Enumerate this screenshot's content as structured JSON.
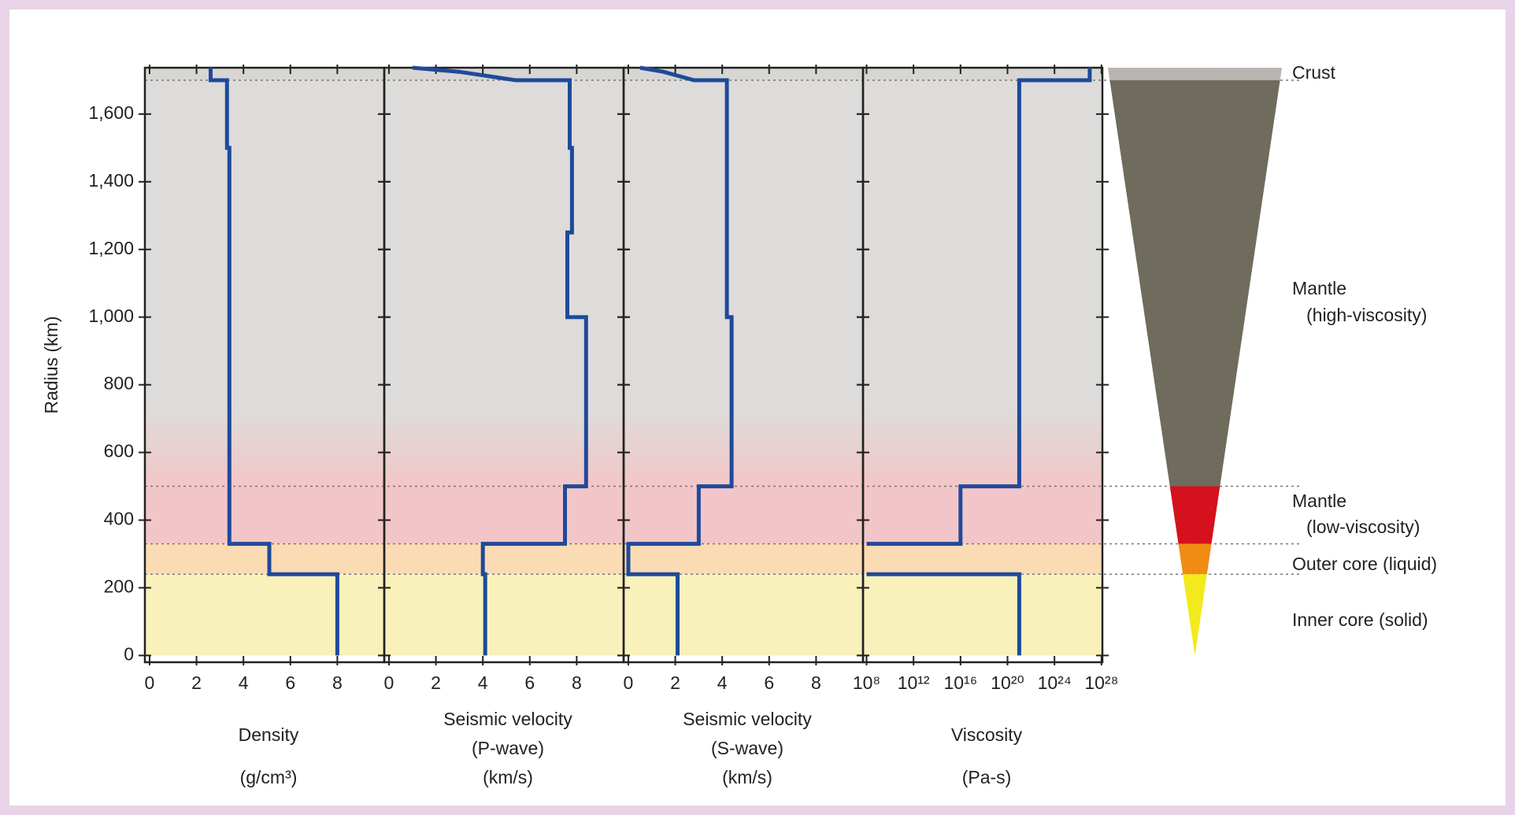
{
  "chart_data": [
    {
      "type": "line",
      "x_label": [
        "Density",
        "(g/cm³)"
      ],
      "y_label": "Radius (km)",
      "xlim": [
        -0.2,
        10
      ],
      "xticks": [
        0,
        2,
        4,
        6,
        8
      ],
      "ylim": [
        -20,
        1737
      ],
      "yticks": [
        0,
        200,
        400,
        600,
        800,
        {
          "value": 1000,
          "label": "1,000"
        },
        {
          "value": 1200,
          "label": "1,200"
        },
        {
          "value": 1400,
          "label": "1,400"
        },
        {
          "value": 1600,
          "label": "1,600"
        }
      ],
      "color": "#1f4a9a",
      "radius": [
        1737,
        1700,
        1700,
        1500,
        1500,
        330,
        330,
        240,
        240,
        0
      ],
      "values": [
        2.6,
        2.6,
        3.3,
        3.3,
        3.4,
        3.4,
        5.1,
        5.1,
        8.0,
        8.0
      ]
    },
    {
      "type": "line",
      "x_label": [
        "Seismic velocity",
        "(P-wave)",
        "(km/s)"
      ],
      "xlim": [
        -0.2,
        10
      ],
      "xticks": [
        0,
        2,
        4,
        6,
        8
      ],
      "ylim": [
        -20,
        1737
      ],
      "color": "#1f4a9a",
      "radius": [
        1737,
        1725,
        1700,
        1700,
        1500,
        1500,
        1250,
        1250,
        1000,
        1000,
        500,
        500,
        330,
        330,
        240,
        240,
        0
      ],
      "values": [
        1.0,
        3.0,
        5.4,
        7.7,
        7.7,
        7.8,
        7.8,
        7.6,
        7.6,
        8.4,
        8.4,
        7.5,
        7.5,
        4.0,
        4.0,
        4.1,
        4.1
      ]
    },
    {
      "type": "line",
      "x_label": [
        "Seismic velocity",
        "(S-wave)",
        "(km/s)"
      ],
      "xlim": [
        -0.2,
        10
      ],
      "xticks": [
        0,
        2,
        4,
        6,
        8
      ],
      "ylim": [
        -20,
        1737
      ],
      "color": "#1f4a9a",
      "radius": [
        1737,
        1725,
        1700,
        1700,
        1000,
        1000,
        500,
        500,
        330,
        330,
        240,
        240,
        0
      ],
      "values": [
        0.5,
        1.5,
        2.8,
        4.2,
        4.2,
        4.4,
        4.4,
        3.0,
        3.0,
        0,
        0,
        2.1,
        2.1
      ]
    },
    {
      "type": "line",
      "x_label": [
        "Viscosity",
        "(Pa-s)"
      ],
      "log_x": true,
      "xlim": [
        50000000,
        1.2e+28
      ],
      "xticks": [
        {
          "value": 100000000.0,
          "label": "10⁸"
        },
        {
          "value": 1000000000000.0,
          "label": "10¹²"
        },
        {
          "value": 1e+16,
          "label": "10¹⁶"
        },
        {
          "value": 1e+20,
          "label": "10²⁰"
        },
        {
          "value": 1e+24,
          "label": "10²⁴"
        },
        {
          "value": 1e+28,
          "label": "10²⁸"
        }
      ],
      "ylim": [
        -20,
        1737
      ],
      "color": "#1f4a9a",
      "radius": [
        1737,
        1700,
        1700,
        500,
        500,
        330,
        330,
        null,
        240,
        240,
        0
      ],
      "values": [
        1e+27,
        1e+27,
        1e+21,
        1e+21,
        1e+16,
        1e+16,
        100000000.0,
        null,
        100000000.0,
        1e+21,
        1e+21
      ]
    }
  ],
  "layers": [
    {
      "label": [
        "Crust"
      ],
      "top": 1737,
      "bottom": 1700,
      "color": "#d8d6d3",
      "cone_color": "#b9b5b0"
    },
    {
      "label": [
        "Mantle",
        "(high-viscosity)"
      ],
      "top": 1700,
      "bottom": 500,
      "color": "#dedcda",
      "cone_color": "#6f6b5d"
    },
    {
      "label": [
        "Mantle",
        "(low-viscosity)"
      ],
      "top": 500,
      "bottom": 330,
      "color": "#f2c6c8",
      "cone_color": "#d4111c"
    },
    {
      "label": [
        "Outer core (liquid)"
      ],
      "top": 330,
      "bottom": 240,
      "color": "#fbdbb4",
      "cone_color": "#f08c12"
    },
    {
      "label": [
        "Inner core (solid)"
      ],
      "top": 240,
      "bottom": 0,
      "color": "#f8f1bb",
      "cone_color": "#f2ea1c"
    }
  ]
}
